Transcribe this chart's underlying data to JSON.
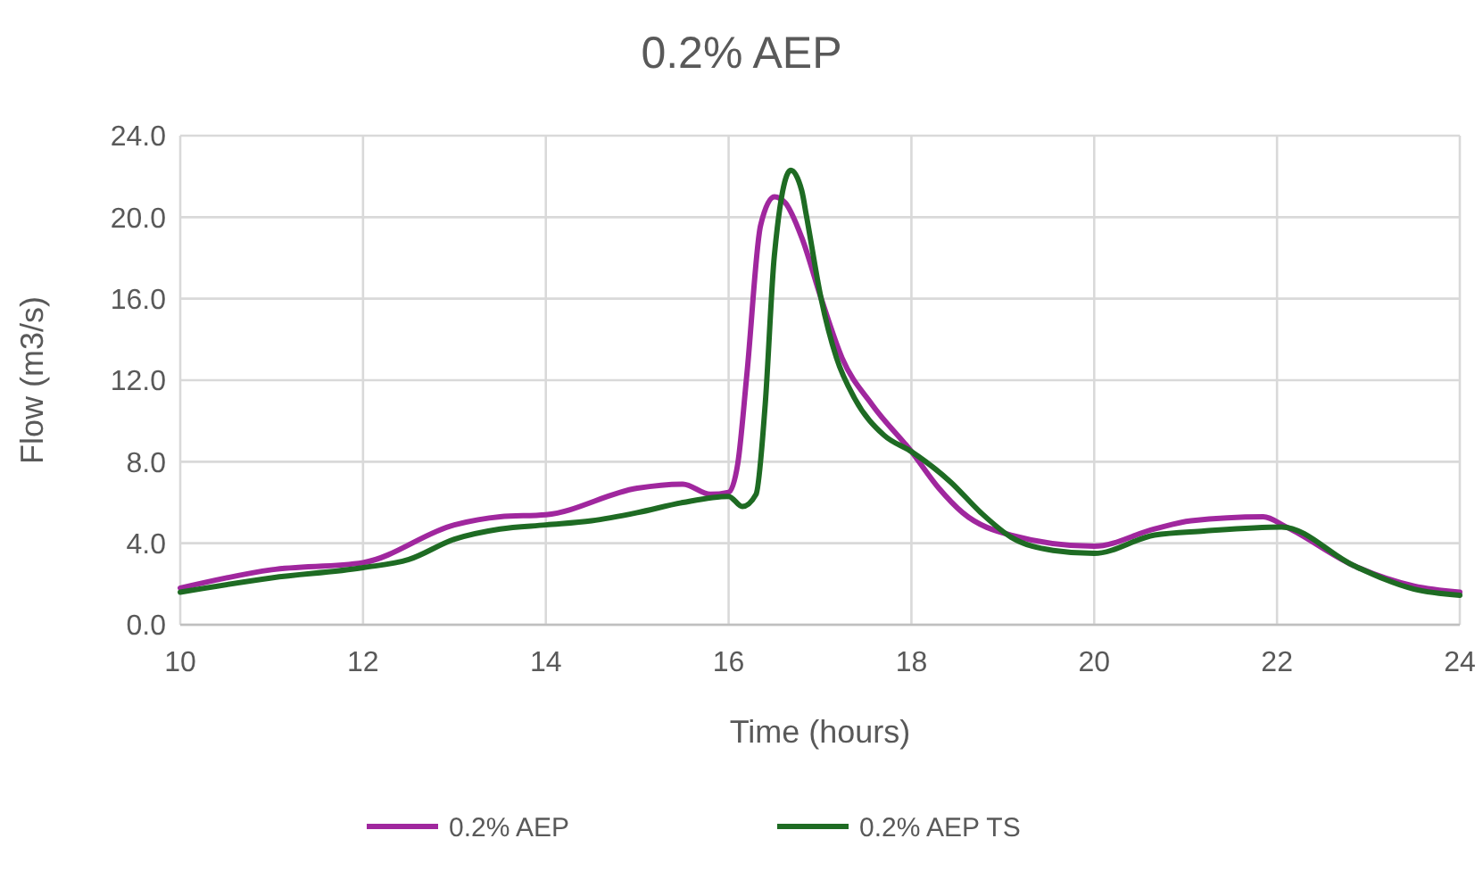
{
  "chart_data": {
    "type": "line",
    "title": "0.2% AEP",
    "xlabel": "Time (hours)",
    "ylabel": "Flow (m3/s)",
    "xlim": [
      10,
      24
    ],
    "xticks": [
      10,
      12,
      14,
      16,
      18,
      20,
      22,
      24
    ],
    "ylim": [
      0,
      24
    ],
    "yticks": [
      {
        "value": 0,
        "label": "0.0"
      },
      {
        "value": 4,
        "label": "4.0"
      },
      {
        "value": 8,
        "label": "8.0"
      },
      {
        "value": 12,
        "label": "12.0"
      },
      {
        "value": 16,
        "label": "16.0"
      },
      {
        "value": 20,
        "label": "20.0"
      },
      {
        "value": 24,
        "label": "24.0"
      }
    ],
    "grid": true,
    "legend": "bottom",
    "marker": "none",
    "line_style": "solid",
    "series": [
      {
        "name": "0.2% AEP",
        "color": "#a0279e",
        "x": [
          10,
          11,
          12,
          13,
          13.5,
          14,
          15,
          15.5,
          15.8,
          16,
          16.1,
          16.2,
          16.35,
          16.5,
          16.62,
          16.8,
          17.01,
          17.24,
          17.57,
          18,
          18.3,
          18.56,
          19.09,
          20,
          20.66,
          21.06,
          21.85,
          22.1,
          22.84,
          23.5,
          24
        ],
        "values": [
          1.8,
          2.7,
          3.05,
          4.9,
          5.3,
          5.4,
          6.7,
          6.9,
          6.4,
          6.5,
          7.9,
          12.3,
          19.6,
          21.0,
          20.7,
          19.0,
          16.05,
          13.1,
          10.8,
          8.5,
          6.7,
          5.5,
          4.4,
          3.85,
          4.7,
          5.1,
          5.3,
          4.8,
          2.9,
          1.9,
          1.6
        ]
      },
      {
        "name": "0.2% AEP TS",
        "color": "#1e6b23",
        "x": [
          10,
          11,
          12,
          12.5,
          13,
          13.5,
          14,
          14.5,
          15,
          15.5,
          16,
          16.15,
          16.3,
          16.4,
          16.5,
          16.68,
          16.8,
          16.85,
          17.01,
          17.18,
          17.38,
          17.7,
          18,
          18.43,
          18.76,
          19.09,
          19.55,
          20,
          20.66,
          21.2,
          22.05,
          22.84,
          23.5,
          24
        ],
        "values": [
          1.6,
          2.3,
          2.8,
          3.2,
          4.2,
          4.7,
          4.9,
          5.1,
          5.5,
          6.0,
          6.3,
          5.8,
          6.4,
          10.8,
          18.1,
          22.3,
          21.3,
          20.1,
          16.05,
          13.1,
          11.1,
          9.3,
          8.5,
          7.0,
          5.5,
          4.3,
          3.65,
          3.5,
          4.4,
          4.6,
          4.8,
          2.9,
          1.75,
          1.45
        ]
      }
    ]
  }
}
